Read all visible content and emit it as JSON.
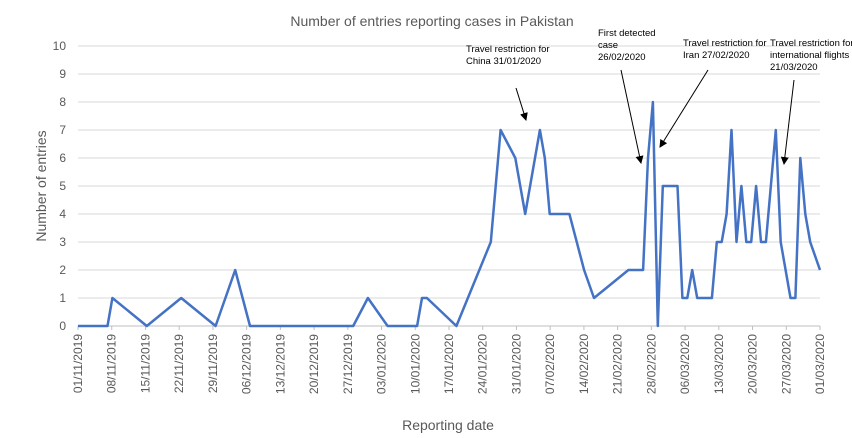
{
  "chart_data": {
    "type": "line",
    "title": "Number of entries reporting cases in Pakistan",
    "xlabel": "Reporting date",
    "ylabel": "Number of entries",
    "ylim": [
      0,
      10
    ],
    "yticks": [
      0,
      1,
      2,
      3,
      4,
      5,
      6,
      7,
      8,
      9,
      10
    ],
    "grid": true,
    "series_color": "#4472c4",
    "x_tick_labels": [
      "01/11/2019",
      "08/11/2019",
      "15/11/2019",
      "22/11/2019",
      "29/11/2019",
      "06/12/2019",
      "13/12/2019",
      "20/12/2019",
      "27/12/2019",
      "03/01/2020",
      "10/01/2020",
      "17/01/2020",
      "24/01/2020",
      "31/01/2020",
      "07/02/2020",
      "14/02/2020",
      "21/02/2020",
      "28/02/2020",
      "06/03/2020",
      "13/03/2020",
      "20/03/2020",
      "27/03/2020",
      "01/03/2020"
    ],
    "series": [
      {
        "x": [
          "01/11/2019",
          "07/11/2019",
          "08/11/2019",
          "15/11/2019",
          "22/11/2019",
          "29/11/2019",
          "03/12/2019",
          "06/12/2019",
          "27/12/2019",
          "30/12/2019",
          "03/01/2020",
          "09/01/2020",
          "10/01/2020",
          "11/01/2020",
          "17/01/2020",
          "24/01/2020",
          "25/01/2020",
          "26/01/2020",
          "29/01/2020",
          "31/01/2020",
          "03/02/2020",
          "04/02/2020",
          "05/02/2020",
          "07/02/2020",
          "09/02/2020",
          "12/02/2020",
          "14/02/2020",
          "21/02/2020",
          "22/02/2020",
          "24/02/2020",
          "25/02/2020",
          "26/02/2020",
          "27/02/2020",
          "28/02/2020",
          "29/02/2020",
          "02/03/2020",
          "03/03/2020",
          "04/03/2020",
          "05/03/2020",
          "06/03/2020",
          "07/03/2020",
          "09/03/2020",
          "10/03/2020",
          "11/03/2020",
          "12/03/2020",
          "13/03/2020",
          "14/03/2020",
          "15/03/2020",
          "16/03/2020",
          "17/03/2020",
          "18/03/2020",
          "19/03/2020",
          "20/03/2020",
          "22/03/2020",
          "23/03/2020",
          "24/03/2020",
          "25/03/2020",
          "26/03/2020",
          "27/03/2020",
          "28/03/2020",
          "29/03/2020",
          "31/03/2020"
        ],
        "values": [
          0,
          0,
          1,
          0,
          1,
          0,
          2,
          0,
          0,
          1,
          0,
          0,
          1,
          1,
          0,
          3,
          5,
          7,
          6,
          4,
          7,
          6,
          4,
          4,
          4,
          2,
          1,
          2,
          2,
          2,
          6,
          8,
          0,
          5,
          5,
          5,
          1,
          1,
          2,
          1,
          1,
          1,
          3,
          3,
          4,
          7,
          3,
          5,
          3,
          3,
          5,
          3,
          3,
          7,
          3,
          2,
          1,
          1,
          6,
          4,
          3,
          2
        ]
      }
    ],
    "annotations": [
      {
        "lines": [
          "Travel restriction for",
          "China 31/01/2020"
        ],
        "points_to": "31/01/2020"
      },
      {
        "lines": [
          "First detected",
          "case",
          "26/02/2020"
        ],
        "points_to": "26/02/2020"
      },
      {
        "lines": [
          "Travel restriction for",
          "Iran 27/02/2020"
        ],
        "points_to": "27/02/2020"
      },
      {
        "lines": [
          "Travel restriction for",
          "international flights",
          "21/03/2020"
        ],
        "points_to": "21/03/2020"
      }
    ]
  }
}
